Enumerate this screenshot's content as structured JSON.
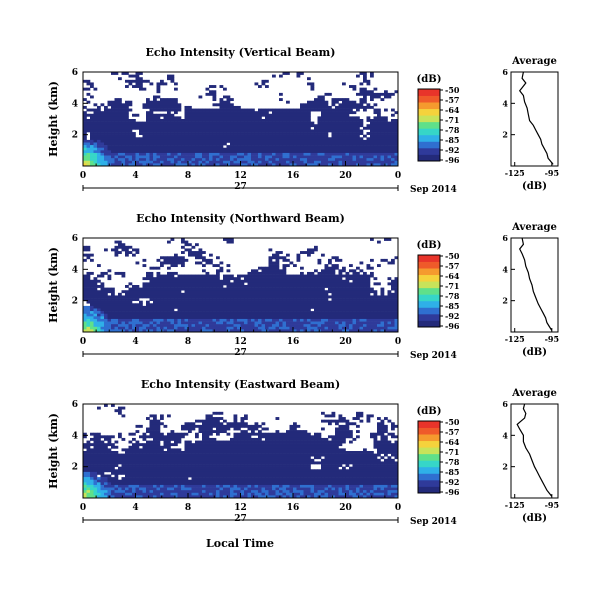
{
  "chart_data": {
    "type": "heatmap",
    "date_label": "Sep 2014",
    "day_label": "27",
    "xlabel_bottom": "Local Time",
    "x_ticks": [
      "0",
      "4",
      "8",
      "12",
      "16",
      "20",
      "0"
    ],
    "x_range": [
      0,
      24
    ],
    "y_label": "Height (km)",
    "y_ticks": [
      "6",
      "4",
      "2"
    ],
    "y_range": [
      0,
      6
    ],
    "colorbar": {
      "unit_label": "(dB)",
      "range": [
        -96,
        -50
      ],
      "ticks": [
        "-50",
        "-57",
        "-64",
        "-71",
        "-78",
        "-85",
        "-92",
        "-96"
      ],
      "colors": [
        "#232a7a",
        "#2f3a9a",
        "#2f6fd0",
        "#2fb0e8",
        "#36d6c8",
        "#5fe08a",
        "#c8e35a",
        "#f5d23c",
        "#f59a2e",
        "#ef5a2a",
        "#e8342a"
      ]
    },
    "panels": [
      {
        "title": "Echo Intensity (Vertical Beam)",
        "profile_title": "Average",
        "profile_xlabel": "(dB)",
        "profile_xticks": [
          "-125",
          "-95"
        ],
        "profile_yticks": [
          "6",
          "4",
          "2"
        ],
        "profile_xlim": [
          -128,
          -90
        ],
        "profile": [
          [
            -118,
            6.0
          ],
          [
            -119,
            5.6
          ],
          [
            -116,
            5.3
          ],
          [
            -119,
            5.0
          ],
          [
            -121,
            4.8
          ],
          [
            -118,
            4.5
          ],
          [
            -117,
            4.1
          ],
          [
            -115,
            3.7
          ],
          [
            -114,
            3.3
          ],
          [
            -113,
            2.9
          ],
          [
            -110,
            2.6
          ],
          [
            -108,
            2.3
          ],
          [
            -106,
            2.0
          ],
          [
            -104,
            1.7
          ],
          [
            -103,
            1.4
          ],
          [
            -101,
            1.1
          ],
          [
            -99,
            0.8
          ],
          [
            -98,
            0.5
          ],
          [
            -96,
            0.3
          ],
          [
            -94,
            0.1
          ]
        ]
      },
      {
        "title": "Echo Intensity (Northward Beam)",
        "profile_title": "Average",
        "profile_xlabel": "(dB)",
        "profile_xticks": [
          "-125",
          "-95"
        ],
        "profile_yticks": [
          "6",
          "4",
          "2"
        ],
        "profile_xlim": [
          -128,
          -90
        ],
        "profile": [
          [
            -119,
            6.0
          ],
          [
            -118,
            5.6
          ],
          [
            -121,
            5.3
          ],
          [
            -119,
            5.0
          ],
          [
            -117,
            4.6
          ],
          [
            -116,
            4.2
          ],
          [
            -114,
            3.8
          ],
          [
            -113,
            3.4
          ],
          [
            -111,
            3.0
          ],
          [
            -110,
            2.6
          ],
          [
            -108,
            2.2
          ],
          [
            -106,
            1.8
          ],
          [
            -104,
            1.5
          ],
          [
            -102,
            1.2
          ],
          [
            -100,
            0.9
          ],
          [
            -99,
            0.6
          ],
          [
            -97,
            0.35
          ],
          [
            -95,
            0.1
          ]
        ]
      },
      {
        "title": "Echo Intensity (Eastward Beam)",
        "profile_title": "Average",
        "profile_xlabel": "(dB)",
        "profile_xticks": [
          "-125",
          "-95"
        ],
        "profile_yticks": [
          "6",
          "4",
          "2"
        ],
        "profile_xlim": [
          -128,
          -90
        ],
        "profile": [
          [
            -117,
            6.0
          ],
          [
            -118,
            5.7
          ],
          [
            -116,
            5.4
          ],
          [
            -117,
            5.1
          ],
          [
            -120,
            4.9
          ],
          [
            -123,
            4.7
          ],
          [
            -121,
            4.4
          ],
          [
            -118,
            4.0
          ],
          [
            -118,
            3.6
          ],
          [
            -116,
            3.2
          ],
          [
            -113,
            2.8
          ],
          [
            -111,
            2.4
          ],
          [
            -109,
            2.0
          ],
          [
            -107,
            1.7
          ],
          [
            -105,
            1.4
          ],
          [
            -103,
            1.1
          ],
          [
            -101,
            0.8
          ],
          [
            -99,
            0.5
          ],
          [
            -97,
            0.3
          ],
          [
            -95,
            0.1
          ]
        ]
      }
    ]
  }
}
